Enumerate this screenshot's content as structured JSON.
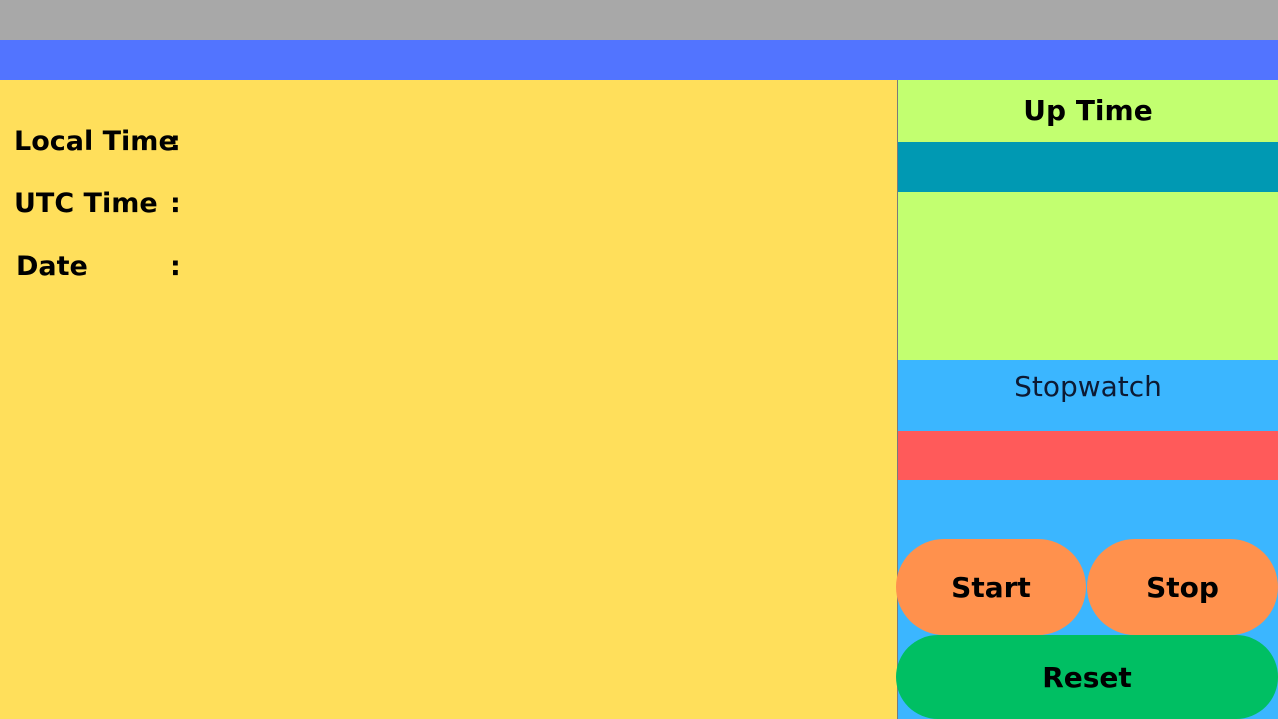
{
  "header": {
    "top_bar_color": "#a8a8a8",
    "nav_bar_color": "#5274ff"
  },
  "clock": {
    "local_label": "Local Time",
    "utc_label": "UTC Time",
    "date_label": "Date",
    "separator": ":",
    "local_value": "",
    "utc_value": "",
    "date_value": ""
  },
  "uptime": {
    "title": "Up Time",
    "value": ""
  },
  "stopwatch": {
    "title": "Stopwatch",
    "value": "",
    "start_label": "Start",
    "stop_label": "Stop",
    "reset_label": "Reset"
  },
  "colors": {
    "main_panel": "#ffdf5b",
    "uptime_panel": "#c2ff70",
    "uptime_display": "#0099b3",
    "stopwatch_panel": "#3bb6ff",
    "stopwatch_display": "#ff5a5a",
    "start_stop_buttons": "#ff914d",
    "reset_button": "#00bf63"
  }
}
